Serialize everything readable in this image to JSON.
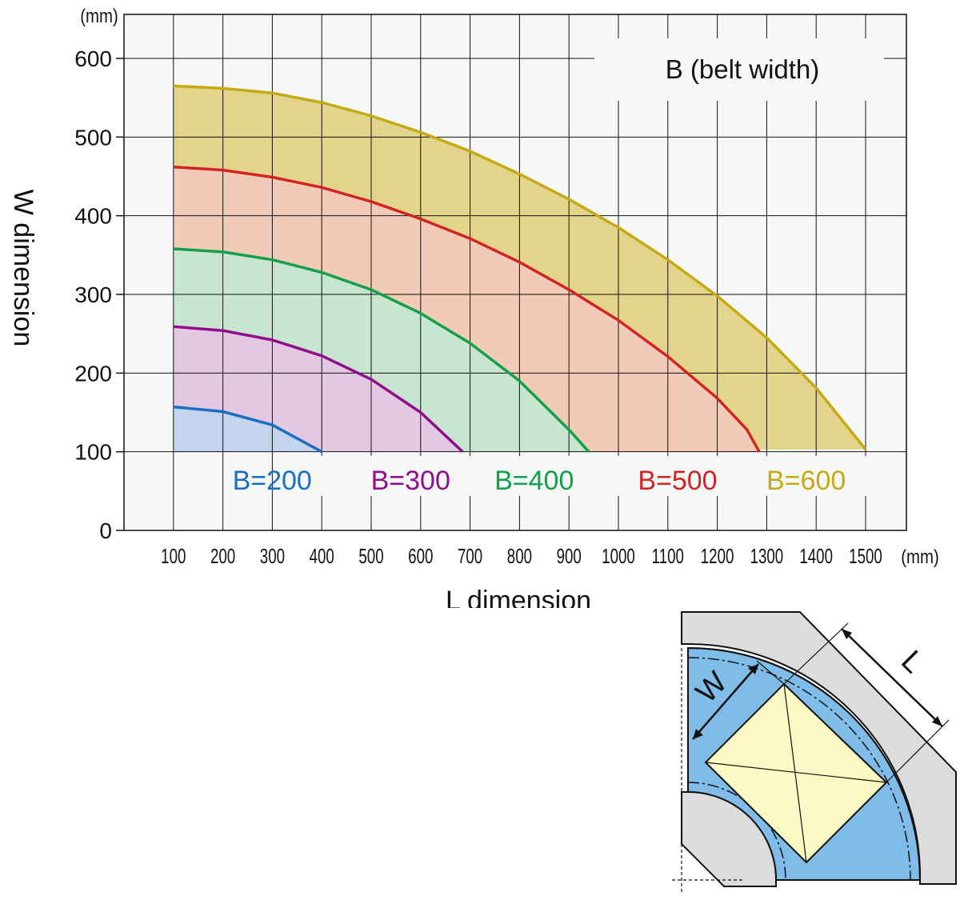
{
  "chart_data": {
    "type": "area",
    "xlabel": "L dimension",
    "ylabel": "W dimension",
    "x_unit": "(mm)",
    "y_unit": "(mm)",
    "xlim": [
      0,
      1560
    ],
    "ylim": [
      0,
      600
    ],
    "x_ticks": [
      "100",
      "200",
      "300",
      "400",
      "500",
      "600",
      "700",
      "800",
      "900",
      "1000",
      "1100",
      "1200",
      "1300",
      "1400",
      "1500"
    ],
    "y_ticks": [
      "0",
      "100",
      "200",
      "300",
      "400",
      "500",
      "600"
    ],
    "grid": true,
    "legend_title": "B (belt width)",
    "legend_placement": "top-right",
    "colors": {
      "grid": "#111111",
      "plot_bg": "#f6f8f7"
    },
    "series": [
      {
        "name": "B=600",
        "line_color": "#c6a915",
        "fill_color": "#e2d48a",
        "points": [
          [
            100,
            565
          ],
          [
            200,
            562
          ],
          [
            300,
            556
          ],
          [
            400,
            544
          ],
          [
            500,
            527
          ],
          [
            600,
            506
          ],
          [
            700,
            482
          ],
          [
            800,
            453
          ],
          [
            900,
            421
          ],
          [
            1000,
            385
          ],
          [
            1100,
            344
          ],
          [
            1200,
            298
          ],
          [
            1300,
            245
          ],
          [
            1400,
            181
          ],
          [
            1500,
            103
          ]
        ]
      },
      {
        "name": "B=500",
        "line_color": "#d32424",
        "fill_color": "#f2cbb8",
        "points": [
          [
            100,
            462
          ],
          [
            200,
            458
          ],
          [
            300,
            449
          ],
          [
            400,
            436
          ],
          [
            500,
            418
          ],
          [
            600,
            396
          ],
          [
            700,
            371
          ],
          [
            800,
            341
          ],
          [
            900,
            306
          ],
          [
            1000,
            267
          ],
          [
            1100,
            221
          ],
          [
            1200,
            168
          ],
          [
            1260,
            128
          ],
          [
            1285,
            100
          ]
        ]
      },
      {
        "name": "B=400",
        "line_color": "#12a04a",
        "fill_color": "#c8e6cf",
        "points": [
          [
            100,
            358
          ],
          [
            200,
            354
          ],
          [
            300,
            344
          ],
          [
            400,
            328
          ],
          [
            500,
            306
          ],
          [
            600,
            276
          ],
          [
            700,
            238
          ],
          [
            800,
            190
          ],
          [
            900,
            128
          ],
          [
            940,
            100
          ]
        ]
      },
      {
        "name": "B=300",
        "line_color": "#920d8c",
        "fill_color": "#e2c8e2",
        "points": [
          [
            100,
            259
          ],
          [
            200,
            254
          ],
          [
            300,
            242
          ],
          [
            400,
            222
          ],
          [
            500,
            192
          ],
          [
            600,
            150
          ],
          [
            685,
            100
          ]
        ]
      },
      {
        "name": "B=200",
        "line_color": "#1b6fc0",
        "fill_color": "#c4d4ef",
        "points": [
          [
            100,
            157
          ],
          [
            200,
            151
          ],
          [
            300,
            134
          ],
          [
            400,
            100
          ]
        ]
      }
    ],
    "series_labels": [
      {
        "text": "B=200",
        "color": "#1b6fc0",
        "x": 380
      },
      {
        "text": "B=300",
        "color": "#920d8c",
        "x": 660
      },
      {
        "text": "B=400",
        "color": "#12a04a",
        "x": 910
      },
      {
        "text": "B=500",
        "color": "#d32424",
        "x": 1200
      },
      {
        "text": "B=600",
        "color": "#c6a915",
        "x": 1460
      }
    ]
  },
  "diagram": {
    "w_label": "W",
    "l_label": "L",
    "colors": {
      "belt": "#7fbde8",
      "frame": "#dcdcdc",
      "box": "#fdf9c4",
      "line": "#111111"
    }
  }
}
